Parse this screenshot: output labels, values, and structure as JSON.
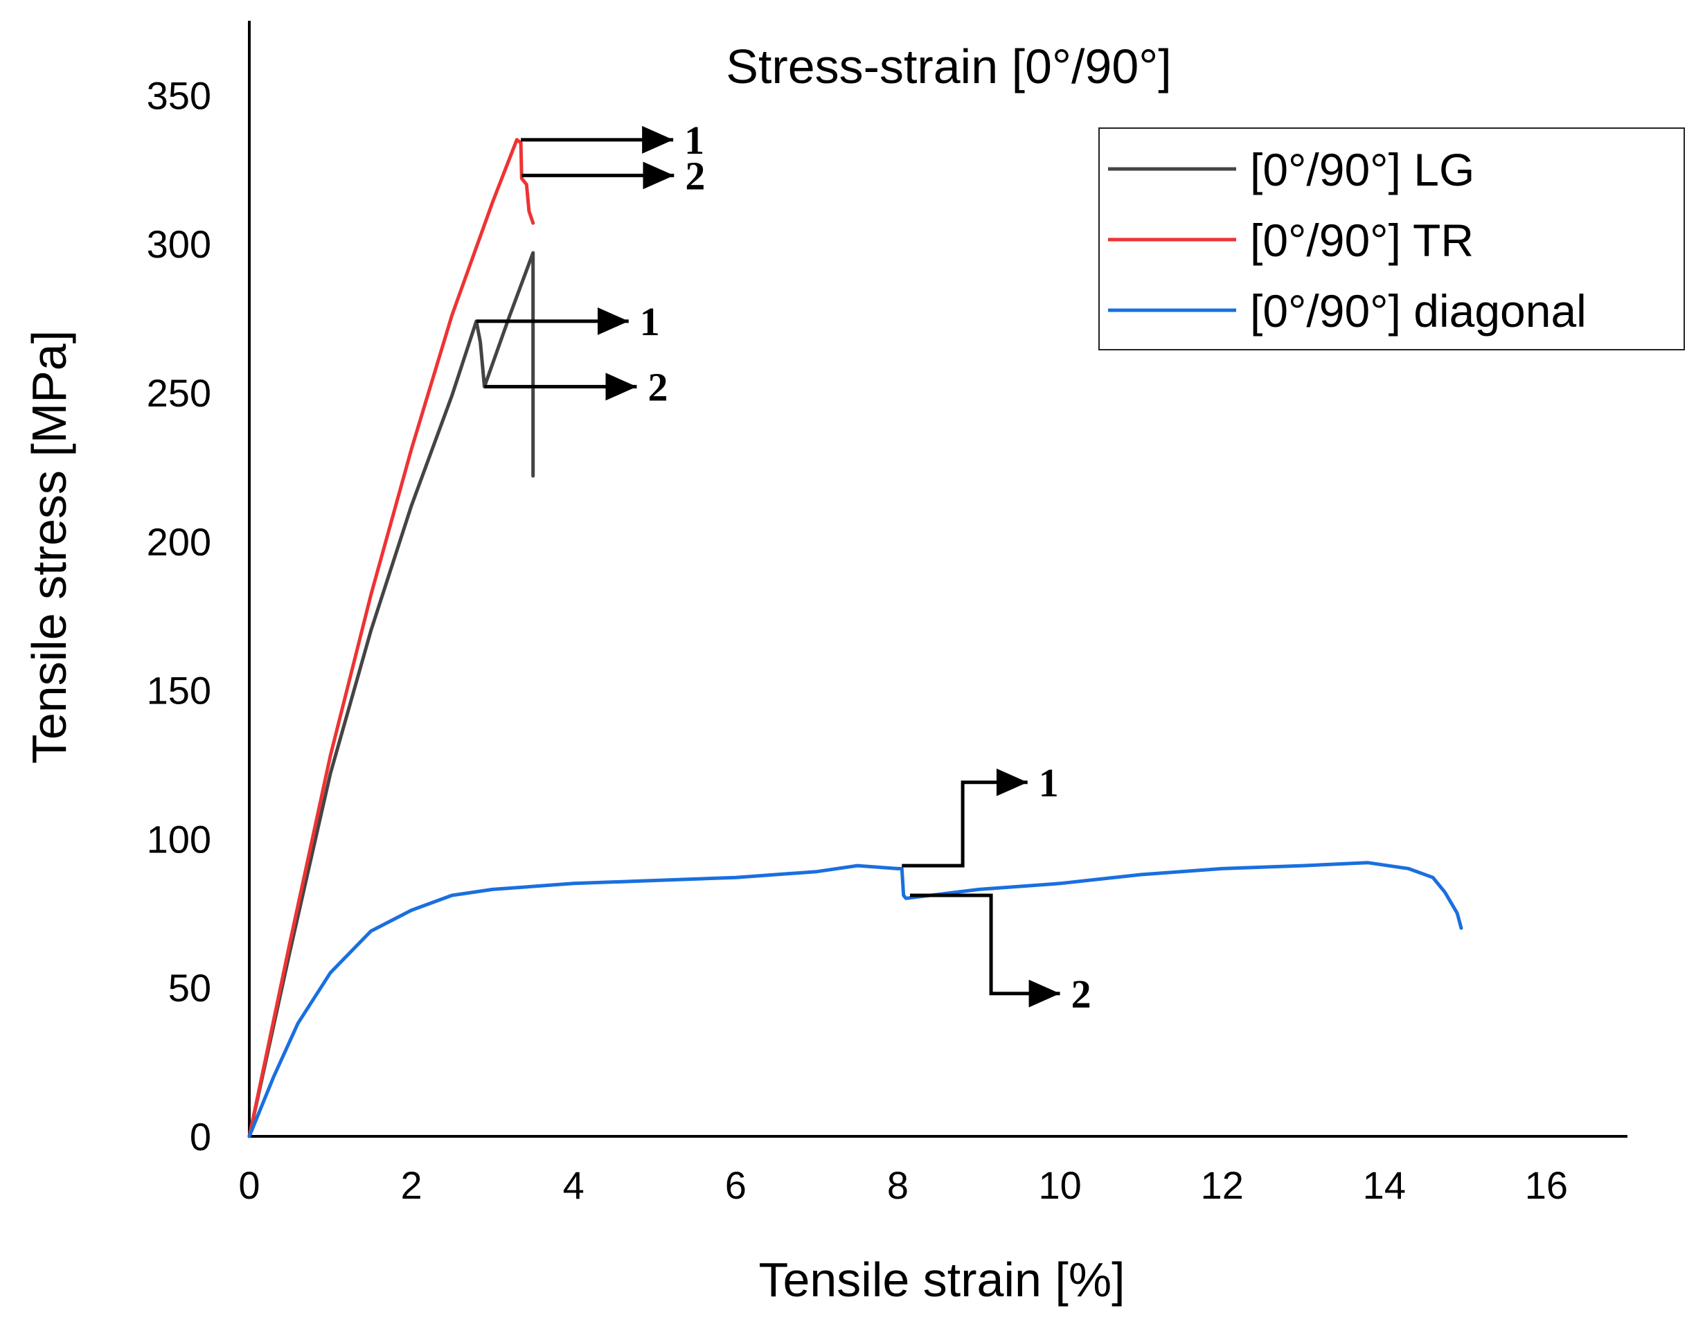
{
  "chart_data": {
    "type": "line",
    "title": "Stress-strain [0°/90°]",
    "xlabel": "Tensile strain [%]",
    "ylabel": "Tensile stress [MPa]",
    "xlim": [
      0,
      17
    ],
    "ylim": [
      0,
      375
    ],
    "xticks": [
      0,
      2,
      4,
      6,
      8,
      10,
      12,
      14,
      16
    ],
    "yticks": [
      0,
      50,
      100,
      150,
      200,
      250,
      300,
      350
    ],
    "grid": false,
    "legend_position": "top-right",
    "series": [
      {
        "name": "[0°/90°] LG",
        "color": "#444444",
        "points": [
          [
            0,
            0
          ],
          [
            0.5,
            62
          ],
          [
            1.0,
            122
          ],
          [
            1.5,
            170
          ],
          [
            2.0,
            212
          ],
          [
            2.5,
            249
          ],
          [
            2.8,
            274
          ],
          [
            2.85,
            267
          ],
          [
            2.9,
            252
          ],
          [
            3.2,
            275
          ],
          [
            3.5,
            297
          ],
          [
            3.5,
            222
          ]
        ]
      },
      {
        "name": "[0°/90°] TR",
        "color": "#ee3333",
        "points": [
          [
            0,
            0
          ],
          [
            0.5,
            65
          ],
          [
            1.0,
            128
          ],
          [
            1.5,
            182
          ],
          [
            2.0,
            231
          ],
          [
            2.5,
            276
          ],
          [
            3.0,
            314
          ],
          [
            3.3,
            335
          ],
          [
            3.35,
            334
          ],
          [
            3.36,
            322
          ],
          [
            3.42,
            320
          ],
          [
            3.45,
            311
          ],
          [
            3.5,
            307
          ]
        ]
      },
      {
        "name": "[0°/90°] diagonal",
        "color": "#1a6fdf",
        "points": [
          [
            0,
            0
          ],
          [
            0.3,
            20
          ],
          [
            0.6,
            38
          ],
          [
            1.0,
            55
          ],
          [
            1.5,
            69
          ],
          [
            2.0,
            76
          ],
          [
            2.5,
            81
          ],
          [
            3.0,
            83
          ],
          [
            4.0,
            85
          ],
          [
            5.0,
            86
          ],
          [
            6.0,
            87
          ],
          [
            7.0,
            89
          ],
          [
            7.5,
            91
          ],
          [
            8.0,
            90
          ],
          [
            8.05,
            90
          ],
          [
            8.07,
            81
          ],
          [
            8.1,
            80
          ],
          [
            9.0,
            83
          ],
          [
            10.0,
            85
          ],
          [
            11.0,
            88
          ],
          [
            12.0,
            90
          ],
          [
            13.0,
            91
          ],
          [
            13.8,
            92
          ],
          [
            14.3,
            90
          ],
          [
            14.6,
            87
          ],
          [
            14.75,
            82
          ],
          [
            14.9,
            75
          ],
          [
            14.95,
            70
          ]
        ]
      }
    ],
    "annotations": [
      {
        "label": "1",
        "series": "[0°/90°] TR",
        "start": [
          3.35,
          335
        ],
        "kind": "straight"
      },
      {
        "label": "2",
        "series": "[0°/90°] TR",
        "start": [
          3.36,
          323
        ],
        "kind": "straight"
      },
      {
        "label": "1",
        "series": "[0°/90°] LG",
        "start": [
          2.8,
          274
        ],
        "kind": "straight"
      },
      {
        "label": "2",
        "series": "[0°/90°] LG",
        "start": [
          2.9,
          252
        ],
        "kind": "straight"
      },
      {
        "label": "1",
        "series": "[0°/90°] diagonal",
        "start": [
          8.05,
          91
        ],
        "kind": "step-up",
        "step_to": [
          8.8,
          119
        ],
        "end_x": 9.6
      },
      {
        "label": "2",
        "series": "[0°/90°] diagonal",
        "start": [
          8.15,
          81
        ],
        "kind": "step-down",
        "step_to": [
          9.15,
          48
        ],
        "end_x": 10.0
      }
    ]
  }
}
